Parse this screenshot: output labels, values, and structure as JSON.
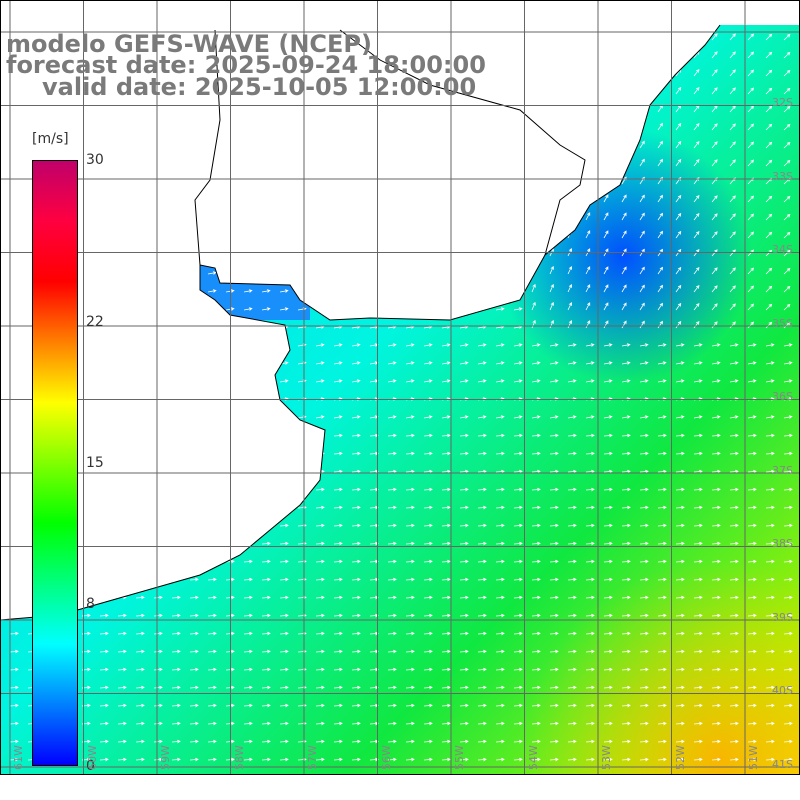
{
  "title": {
    "model": "modelo GEFS-WAVE (NCEP)",
    "forecast": "forecast date: 2025-09-24 18:00:00",
    "valid": "valid date: 2025-10-05 12:00:00"
  },
  "colorbar": {
    "unit": "[m/s]",
    "ticks": [
      {
        "label": "30",
        "value": 30
      },
      {
        "label": "22",
        "value": 22
      },
      {
        "label": "15",
        "value": 15
      },
      {
        "label": "8",
        "value": 8
      },
      {
        "label": "0",
        "value": 0
      }
    ],
    "range": [
      0,
      30
    ]
  },
  "latitude_labels": [
    "32S",
    "33S",
    "34S",
    "35S",
    "36S",
    "37S",
    "38S",
    "39S",
    "40S",
    "41S"
  ],
  "longitude_labels": [
    "61W",
    "60W",
    "59W",
    "58W",
    "57W",
    "56W",
    "55W",
    "54W",
    "53W",
    "52W",
    "51W"
  ],
  "colors": {
    "land": "#ffffff",
    "coast": "#000000",
    "grid": "#666666",
    "arrows": "#ffffff"
  }
}
